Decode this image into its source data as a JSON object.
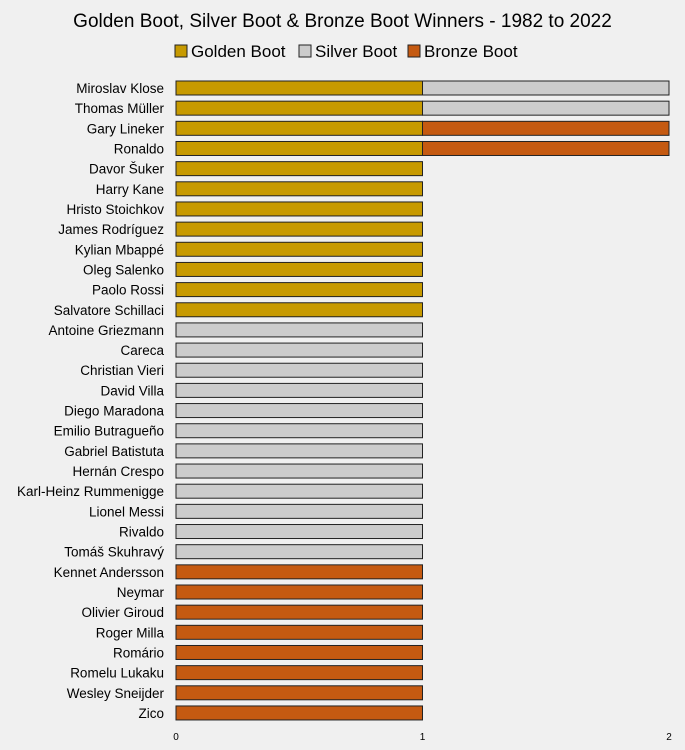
{
  "chart_data": {
    "type": "bar",
    "orientation": "horizontal",
    "stacked": true,
    "title": "Golden Boot, Silver Boot & Bronze Boot Winners - 1982 to 2022",
    "xlabel": "",
    "ylabel": "",
    "xlim": [
      0,
      2
    ],
    "x_ticks": [
      "0",
      "1",
      "2"
    ],
    "legend_position": "top",
    "grid": false,
    "categories": [
      "Miroslav Klose",
      "Thomas Müller",
      "Gary Lineker",
      "Ronaldo",
      "Davor Šuker",
      "Harry Kane",
      "Hristo Stoichkov",
      "James Rodríguez",
      "Kylian Mbappé",
      "Oleg Salenko",
      "Paolo Rossi",
      "Salvatore Schillaci",
      "Antoine Griezmann",
      "Careca",
      "Christian Vieri",
      "David Villa",
      "Diego Maradona",
      "Emilio Butragueño",
      "Gabriel Batistuta",
      "Hernán Crespo",
      "Karl-Heinz Rummenigge",
      "Lionel Messi",
      "Rivaldo",
      "Tomáš Skuhravý",
      "Kennet Andersson",
      "Neymar",
      "Olivier Giroud",
      "Roger Milla",
      "Romário",
      "Romelu Lukaku",
      "Wesley Sneijder",
      "Zico"
    ],
    "series": [
      {
        "name": "Golden Boot",
        "color": "#c79a00",
        "values": [
          1,
          1,
          1,
          1,
          1,
          1,
          1,
          1,
          1,
          1,
          1,
          1,
          0,
          0,
          0,
          0,
          0,
          0,
          0,
          0,
          0,
          0,
          0,
          0,
          0,
          0,
          0,
          0,
          0,
          0,
          0,
          0
        ]
      },
      {
        "name": "Silver Boot",
        "color": "#cccccc",
        "values": [
          1,
          1,
          0,
          0,
          0,
          0,
          0,
          0,
          0,
          0,
          0,
          0,
          1,
          1,
          1,
          1,
          1,
          1,
          1,
          1,
          1,
          1,
          1,
          1,
          0,
          0,
          0,
          0,
          0,
          0,
          0,
          0
        ]
      },
      {
        "name": "Bronze Boot",
        "color": "#c55a11",
        "values": [
          0,
          0,
          1,
          1,
          0,
          0,
          0,
          0,
          0,
          0,
          0,
          0,
          0,
          0,
          0,
          0,
          0,
          0,
          0,
          0,
          0,
          0,
          0,
          0,
          1,
          1,
          1,
          1,
          1,
          1,
          1,
          1
        ]
      }
    ]
  }
}
